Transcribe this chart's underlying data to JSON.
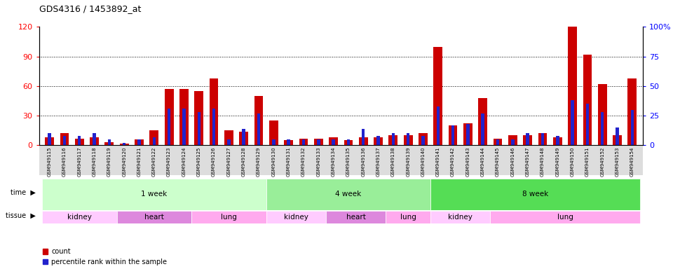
{
  "title": "GDS4316 / 1453892_at",
  "samples": [
    "GSM949115",
    "GSM949116",
    "GSM949117",
    "GSM949118",
    "GSM949119",
    "GSM949120",
    "GSM949121",
    "GSM949122",
    "GSM949123",
    "GSM949124",
    "GSM949125",
    "GSM949126",
    "GSM949127",
    "GSM949128",
    "GSM949129",
    "GSM949130",
    "GSM949131",
    "GSM949132",
    "GSM949133",
    "GSM949134",
    "GSM949135",
    "GSM949136",
    "GSM949137",
    "GSM949138",
    "GSM949139",
    "GSM949140",
    "GSM949141",
    "GSM949142",
    "GSM949143",
    "GSM949144",
    "GSM949145",
    "GSM949146",
    "GSM949147",
    "GSM949148",
    "GSM949149",
    "GSM949150",
    "GSM949151",
    "GSM949152",
    "GSM949153",
    "GSM949154"
  ],
  "count": [
    8,
    12,
    7,
    8,
    3,
    2,
    6,
    15,
    57,
    57,
    55,
    68,
    15,
    14,
    50,
    25,
    5,
    7,
    7,
    8,
    5,
    8,
    8,
    10,
    10,
    12,
    100,
    20,
    22,
    48,
    7,
    10,
    10,
    12,
    8,
    120,
    92,
    62,
    10,
    68
  ],
  "percentile": [
    10,
    8,
    8,
    10,
    5,
    2,
    5,
    7,
    31,
    31,
    28,
    31,
    5,
    14,
    27,
    5,
    5,
    5,
    5,
    5,
    5,
    14,
    8,
    10,
    10,
    8,
    33,
    17,
    18,
    27,
    5,
    5,
    10,
    10,
    8,
    38,
    35,
    28,
    15,
    30
  ],
  "ylim_left": [
    0,
    120
  ],
  "ylim_right": [
    0,
    100
  ],
  "left_yticks": [
    0,
    30,
    60,
    90,
    120
  ],
  "right_yticks": [
    0,
    25,
    50,
    75,
    100
  ],
  "right_yticklabels": [
    "0",
    "25",
    "50",
    "75",
    "100%"
  ],
  "bar_color_red": "#cc0000",
  "bar_color_blue": "#2222cc",
  "time_groups": [
    {
      "label": "1 week",
      "start": 0,
      "end": 15,
      "color": "#ccffcc"
    },
    {
      "label": "4 week",
      "start": 15,
      "end": 26,
      "color": "#99ee99"
    },
    {
      "label": "8 week",
      "start": 26,
      "end": 40,
      "color": "#55dd55"
    }
  ],
  "tissue_groups": [
    {
      "label": "kidney",
      "start": 0,
      "end": 5,
      "color": "#ffaaff"
    },
    {
      "label": "heart",
      "start": 5,
      "end": 10,
      "color": "#ee88ee"
    },
    {
      "label": "lung",
      "start": 10,
      "end": 15,
      "color": "#ffaaff"
    },
    {
      "label": "kidney",
      "start": 15,
      "end": 19,
      "color": "#ffaaff"
    },
    {
      "label": "heart",
      "start": 19,
      "end": 23,
      "color": "#ee88ee"
    },
    {
      "label": "lung",
      "start": 23,
      "end": 26,
      "color": "#ffaaff"
    },
    {
      "label": "kidney",
      "start": 26,
      "end": 30,
      "color": "#ffaaff"
    },
    {
      "label": "lung",
      "start": 30,
      "end": 40,
      "color": "#ffaaff"
    }
  ],
  "legend_items": [
    {
      "label": "count",
      "color": "#cc0000"
    },
    {
      "label": "percentile rank within the sample",
      "color": "#2222cc"
    }
  ],
  "grid_yticks": [
    30,
    60,
    90
  ],
  "xaxis_label_bg": "#dddddd"
}
